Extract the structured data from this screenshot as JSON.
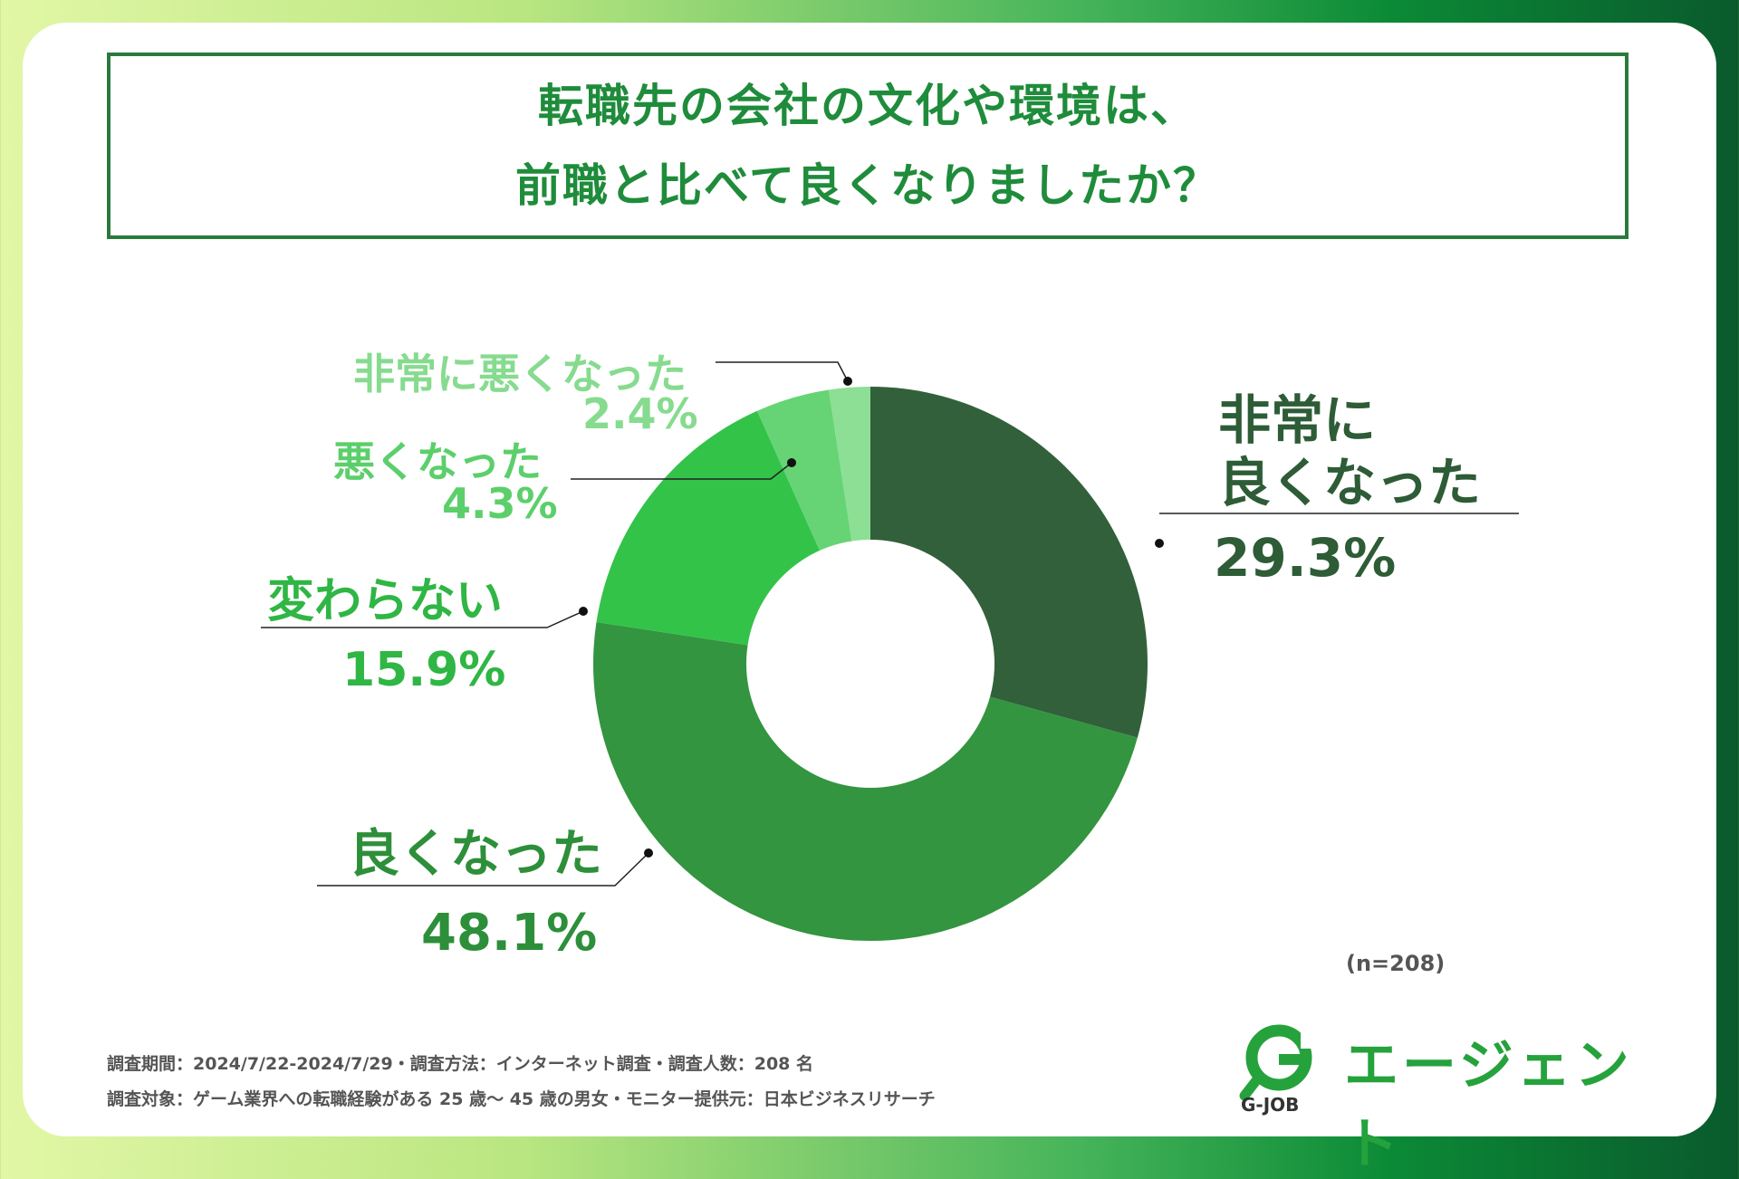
{
  "title": {
    "line1": "転職先の会社の文化や環境は、",
    "line2": "前職と比べて良くなりましたか？"
  },
  "chart_data": {
    "type": "pie",
    "title": "転職先の会社の文化や環境は、前職と比べて良くなりましたか？",
    "slices": [
      {
        "label": "非常に良くなった",
        "value": 29.3,
        "display": "29.3%",
        "color": "#32603a"
      },
      {
        "label": "良くなった",
        "value": 48.1,
        "display": "48.1%",
        "color": "#33953f"
      },
      {
        "label": "変わらない",
        "value": 15.9,
        "display": "15.9%",
        "color": "#33c349"
      },
      {
        "label": "悪くなった",
        "value": 4.3,
        "display": "4.3%",
        "color": "#66d474"
      },
      {
        "label": "非常に悪くなった",
        "value": 2.4,
        "display": "2.4%",
        "color": "#8cdf95"
      }
    ],
    "donut": true,
    "n_label": "(n=208)"
  },
  "labels": {
    "very_good_line1": "非常に",
    "very_good_line2": "良くなった",
    "very_good_value": "29.3%",
    "good": "良くなった",
    "good_value": "48.1%",
    "same": "変わらない",
    "same_value": "15.9%",
    "bad": "悪くなった",
    "bad_value": "4.3%",
    "very_bad": "非常に悪くなった",
    "very_bad_value": "2.4%"
  },
  "footer": {
    "line1": "調査期間：2024/7/22-2024/7/29・調査方法：インターネット調査・調査人数：208 名",
    "line2": "調査対象：ゲーム業界への転職経験がある 25 歳〜 45 歳の男女・モニター提供元：日本ビジネスリサーチ"
  },
  "logo": {
    "text": "エージェント",
    "sub": "G-JOB",
    "mark": "G",
    "color": "#25a23c"
  }
}
